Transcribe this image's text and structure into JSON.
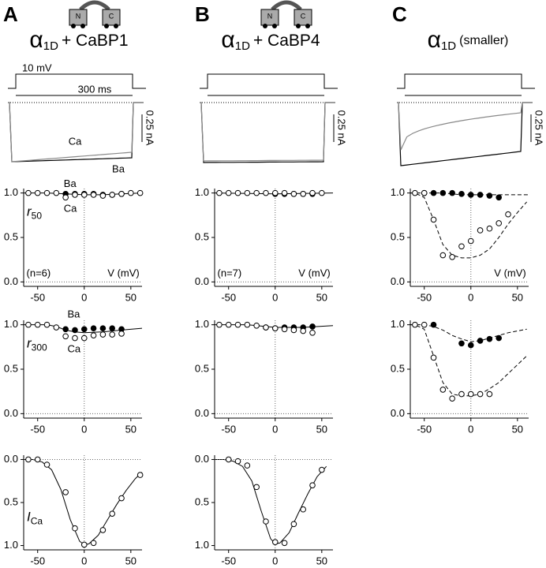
{
  "panels": [
    {
      "label": "A",
      "title": "α",
      "title_sub": "1D",
      "title_rest": "+ CaBP1",
      "protocol_labels": [
        "10 mV",
        "300 ms"
      ],
      "trace_labels": [
        "Ca",
        "Ba"
      ],
      "scale_label": "0.25 nA"
    },
    {
      "label": "B",
      "title": "α",
      "title_sub": "1D",
      "title_rest": "+ CaBP4",
      "scale_label": "0.25 nA"
    },
    {
      "label": "C",
      "title": "α",
      "title_sub": "1D",
      "title_rest": "(smaller)",
      "scale_label": "0.25 nA"
    }
  ],
  "chart_data": [
    {
      "type": "scatter",
      "ylabel": "r",
      "ylabel_sub": "50",
      "annotations": [
        "Ba",
        "Ca",
        "(n=6)",
        "V (mV)"
      ],
      "xlim": [
        -65,
        62
      ],
      "xticks": [
        -50,
        0,
        50
      ],
      "ylim": [
        -0.05,
        1.05
      ],
      "yticks": [
        {
          "value": 0,
          "label": "0.0"
        },
        {
          "value": 0.5,
          "label": "0.5"
        },
        {
          "value": 1,
          "label": "1.0"
        }
      ],
      "ref_lines": true,
      "series": [
        {
          "marker": "filled",
          "color": "#000000",
          "x": [
            -20,
            -10,
            0,
            10,
            20,
            30,
            40
          ],
          "values": [
            0.99,
            0.99,
            0.99,
            0.99,
            0.98,
            0.98,
            0.99
          ]
        },
        {
          "marker": "open",
          "color": "#000000",
          "x": [
            -60,
            -50,
            -40,
            -30,
            -20,
            -10,
            0,
            10,
            20,
            30,
            40,
            50,
            60
          ],
          "values": [
            1,
            1,
            1,
            1,
            0.95,
            0.98,
            0.98,
            0.98,
            0.97,
            0.98,
            0.99,
            1,
            1
          ]
        },
        {
          "marker": "fit",
          "dash": false,
          "color": "#000000",
          "x": [
            -65,
            -40,
            -20,
            0,
            20,
            40,
            62
          ],
          "values": [
            1,
            1,
            0.99,
            0.98,
            0.98,
            0.99,
            1
          ]
        }
      ]
    },
    {
      "type": "scatter",
      "ylabel": "r",
      "ylabel_sub": "300",
      "annotations": [
        "Ba",
        "Ca"
      ],
      "xlim": [
        -65,
        62
      ],
      "xticks": [
        -50,
        0,
        50
      ],
      "ylim": [
        -0.05,
        1.05
      ],
      "yticks": [
        {
          "value": 0,
          "label": "0.0"
        },
        {
          "value": 0.5,
          "label": "0.5"
        },
        {
          "value": 1,
          "label": "1.0"
        }
      ],
      "ref_lines": true,
      "series": [
        {
          "marker": "filled",
          "color": "#000000",
          "x": [
            -20,
            -10,
            0,
            10,
            20,
            30,
            40
          ],
          "values": [
            0.95,
            0.94,
            0.95,
            0.96,
            0.96,
            0.96,
            0.95
          ]
        },
        {
          "marker": "open",
          "color": "#000000",
          "x": [
            -60,
            -50,
            -40,
            -30,
            -20,
            -10,
            0,
            10,
            20,
            30,
            40
          ],
          "values": [
            1,
            1,
            1,
            0.97,
            0.87,
            0.85,
            0.85,
            0.88,
            0.89,
            0.89,
            0.9
          ]
        },
        {
          "marker": "fit",
          "dash": false,
          "color": "#000000",
          "x": [
            -65,
            -40,
            -30,
            -20,
            -10,
            0,
            20,
            40,
            62
          ],
          "values": [
            1,
            1,
            0.98,
            0.94,
            0.92,
            0.91,
            0.92,
            0.94,
            0.96
          ]
        }
      ]
    },
    {
      "type": "scatter",
      "ylabel": "I",
      "ylabel_sub": "Ca",
      "xlim": [
        -65,
        62
      ],
      "xticks": [
        -50,
        0,
        50
      ],
      "ylim": [
        -0.05,
        1.05
      ],
      "y_inverted": true,
      "yticks": [
        {
          "value": 0,
          "label": "0.0"
        },
        {
          "value": 0.5,
          "label": "0.5"
        },
        {
          "value": 1,
          "label": "1.0"
        }
      ],
      "ref_lines": true,
      "series": [
        {
          "marker": "open",
          "color": "#000000",
          "x": [
            -60,
            -50,
            -40,
            -20,
            -10,
            0,
            10,
            20,
            30,
            40,
            60
          ],
          "values": [
            0,
            0,
            0.06,
            0.38,
            0.8,
            0.99,
            0.97,
            0.82,
            0.63,
            0.45,
            0.18
          ]
        },
        {
          "marker": "fit",
          "dash": false,
          "color": "#000000",
          "x": [
            -65,
            -55,
            -45,
            -35,
            -25,
            -15,
            -5,
            0,
            5,
            15,
            25,
            35,
            45,
            55,
            62
          ],
          "values": [
            0,
            0,
            0.03,
            0.12,
            0.35,
            0.7,
            0.95,
            0.99,
            0.98,
            0.88,
            0.7,
            0.52,
            0.36,
            0.22,
            0.15
          ]
        }
      ]
    },
    {
      "type": "scatter",
      "annotations": [
        "(n=7)",
        "V (mV)"
      ],
      "xlim": [
        -65,
        62
      ],
      "xticks": [
        -50,
        0,
        50
      ],
      "ylim": [
        -0.05,
        1.05
      ],
      "yticks": [
        {
          "value": 0,
          "label": "0.0"
        },
        {
          "value": 0.5,
          "label": "0.5"
        },
        {
          "value": 1,
          "label": "1.0"
        }
      ],
      "ref_lines": true,
      "series": [
        {
          "marker": "filled",
          "color": "#000000",
          "x": [
            0,
            10,
            20,
            30,
            40
          ],
          "values": [
            0.99,
            0.99,
            0.99,
            0.99,
            0.99
          ]
        },
        {
          "marker": "open",
          "color": "#000000",
          "x": [
            -60,
            -50,
            -40,
            -30,
            -20,
            -10,
            0,
            10,
            20,
            30,
            40,
            50
          ],
          "values": [
            1,
            1,
            1,
            1,
            1,
            1,
            1,
            1,
            0.99,
            0.99,
            1,
            1
          ]
        },
        {
          "marker": "fit",
          "dash": false,
          "color": "#000000",
          "x": [
            -65,
            0,
            62
          ],
          "values": [
            1,
            0.99,
            1
          ]
        }
      ]
    },
    {
      "type": "scatter",
      "xlim": [
        -65,
        62
      ],
      "xticks": [
        -50,
        0,
        50
      ],
      "ylim": [
        -0.05,
        1.05
      ],
      "yticks": [
        {
          "value": 0,
          "label": "0.0"
        },
        {
          "value": 0.5,
          "label": "0.5"
        },
        {
          "value": 1,
          "label": "1.0"
        }
      ],
      "ref_lines": true,
      "series": [
        {
          "marker": "filled",
          "color": "#000000",
          "x": [
            -10,
            0,
            10,
            20,
            30,
            40
          ],
          "values": [
            0.97,
            0.96,
            0.97,
            0.97,
            0.97,
            0.98
          ]
        },
        {
          "marker": "open",
          "color": "#000000",
          "x": [
            -60,
            -50,
            -40,
            -30,
            -20,
            -10,
            0,
            10,
            20,
            30,
            40
          ],
          "values": [
            1,
            1,
            1,
            1,
            0.99,
            0.97,
            0.96,
            0.95,
            0.94,
            0.93,
            0.91
          ]
        },
        {
          "marker": "fit",
          "dash": false,
          "color": "#000000",
          "x": [
            -65,
            -30,
            0,
            30,
            62
          ],
          "values": [
            1,
            1,
            0.97,
            0.97,
            0.99
          ]
        }
      ]
    },
    {
      "type": "scatter",
      "xlim": [
        -65,
        62
      ],
      "xticks": [
        -50,
        0,
        50
      ],
      "ylim": [
        -0.05,
        1.05
      ],
      "y_inverted": true,
      "yticks": [
        {
          "value": 0,
          "label": "0.0"
        },
        {
          "value": 0.5,
          "label": "0.5"
        },
        {
          "value": 1,
          "label": "1.0"
        }
      ],
      "ref_lines": true,
      "series": [
        {
          "marker": "open",
          "color": "#000000",
          "x": [
            -50,
            -40,
            -30,
            -20,
            -10,
            0,
            10,
            20,
            30,
            40,
            50
          ],
          "values": [
            0,
            0.02,
            0.07,
            0.32,
            0.72,
            0.96,
            0.97,
            0.75,
            0.58,
            0.3,
            0.12
          ]
        },
        {
          "marker": "fit",
          "dash": false,
          "color": "#000000",
          "x": [
            -65,
            -55,
            -45,
            -35,
            -25,
            -15,
            -5,
            0,
            5,
            15,
            25,
            35,
            45,
            55
          ],
          "values": [
            0,
            0,
            0.02,
            0.08,
            0.25,
            0.6,
            0.92,
            0.98,
            0.97,
            0.85,
            0.62,
            0.4,
            0.2,
            0.08
          ]
        }
      ]
    },
    {
      "type": "scatter",
      "annotations": [
        "V (mV)"
      ],
      "xlim": [
        -65,
        62
      ],
      "xticks": [
        -50,
        0,
        50
      ],
      "ylim": [
        -0.05,
        1.05
      ],
      "yticks": [
        {
          "value": 0,
          "label": "0.0"
        },
        {
          "value": 0.5,
          "label": "0.5"
        },
        {
          "value": 1,
          "label": "1.0"
        }
      ],
      "ref_lines": true,
      "series": [
        {
          "marker": "filled",
          "color": "#000000",
          "x": [
            -50,
            -40,
            -30,
            -20,
            -10,
            0,
            10,
            20,
            30
          ],
          "values": [
            1,
            1,
            1,
            1,
            0.99,
            0.98,
            0.98,
            0.97,
            0.95
          ]
        },
        {
          "marker": "open",
          "color": "#000000",
          "x": [
            -60,
            -50,
            -40,
            -30,
            -20,
            -10,
            0,
            10,
            20,
            30,
            40
          ],
          "values": [
            1,
            1,
            0.7,
            0.3,
            0.28,
            0.4,
            0.46,
            0.58,
            0.6,
            0.66,
            0.76
          ]
        },
        {
          "marker": "fit",
          "dash": true,
          "color": "#000000",
          "x": [
            -65,
            -40,
            -30,
            -20,
            -10,
            0,
            20,
            40,
            62
          ],
          "values": [
            1,
            1,
            1,
            0.99,
            0.98,
            0.98,
            0.98,
            0.98,
            0.98
          ]
        },
        {
          "marker": "fit",
          "dash": true,
          "color": "#000000",
          "x": [
            -65,
            -60,
            -50,
            -40,
            -30,
            -20,
            -10,
            0,
            10,
            20,
            30,
            40,
            50,
            60
          ],
          "values": [
            1,
            1,
            0.95,
            0.7,
            0.42,
            0.3,
            0.27,
            0.27,
            0.3,
            0.37,
            0.5,
            0.65,
            0.78,
            0.9
          ]
        }
      ]
    },
    {
      "type": "scatter",
      "xlim": [
        -65,
        62
      ],
      "xticks": [
        -50,
        0,
        50
      ],
      "ylim": [
        -0.05,
        1.05
      ],
      "yticks": [
        {
          "value": 0,
          "label": "0.0"
        },
        {
          "value": 0.5,
          "label": "0.5"
        },
        {
          "value": 1,
          "label": "1.0"
        }
      ],
      "ref_lines": true,
      "series": [
        {
          "marker": "filled",
          "color": "#000000",
          "x": [
            -40,
            -10,
            0,
            10,
            20,
            30
          ],
          "values": [
            1,
            0.79,
            0.77,
            0.82,
            0.84,
            0.85
          ]
        },
        {
          "marker": "open",
          "color": "#000000",
          "x": [
            -60,
            -50,
            -40,
            -30,
            -20,
            -10,
            0,
            10,
            20
          ],
          "values": [
            1,
            1,
            0.63,
            0.27,
            0.17,
            0.22,
            0.22,
            0.22,
            0.22
          ]
        },
        {
          "marker": "fit",
          "dash": true,
          "color": "#000000",
          "x": [
            -65,
            -50,
            -40,
            -30,
            -20,
            -10,
            0,
            10,
            20,
            30,
            40,
            50,
            60
          ],
          "values": [
            1,
            1,
            0.98,
            0.94,
            0.88,
            0.84,
            0.81,
            0.82,
            0.85,
            0.88,
            0.91,
            0.93,
            0.95
          ]
        },
        {
          "marker": "fit",
          "dash": true,
          "color": "#000000",
          "x": [
            -65,
            -60,
            -50,
            -40,
            -30,
            -20,
            -10,
            0,
            10,
            20,
            30,
            40,
            50,
            60
          ],
          "values": [
            1,
            1,
            0.95,
            0.65,
            0.35,
            0.22,
            0.2,
            0.2,
            0.22,
            0.28,
            0.35,
            0.45,
            0.55,
            0.65
          ]
        }
      ]
    }
  ]
}
